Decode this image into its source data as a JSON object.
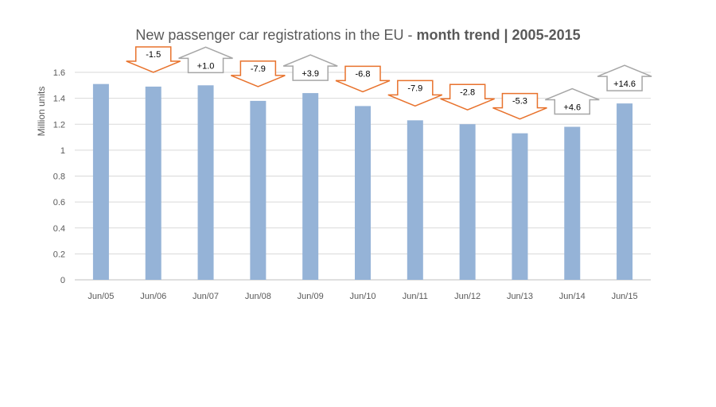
{
  "chart_data": {
    "type": "bar",
    "title": "New passenger car registrations in the EU - ",
    "title_bold": "month trend | 2005-2015",
    "xlabel": "",
    "ylabel": "Million units",
    "ylim": [
      0,
      1.6
    ],
    "yticks": [
      "0",
      "0.2",
      "0.4",
      "0.6",
      "0.8",
      "1",
      "1.2",
      "1.4",
      "1.6"
    ],
    "grid": true,
    "categories": [
      "Jun/05",
      "Jun/06",
      "Jun/07",
      "Jun/08",
      "Jun/09",
      "Jun/10",
      "Jun/11",
      "Jun/12",
      "Jun/13",
      "Jun/14",
      "Jun/15"
    ],
    "values": [
      1.51,
      1.49,
      1.5,
      1.38,
      1.44,
      1.34,
      1.23,
      1.2,
      1.13,
      1.18,
      1.36
    ],
    "changes": [
      "",
      "-1.5",
      "+1.0",
      "-7.9",
      "+3.9",
      "-6.8",
      "-7.9",
      "-2.8",
      "-5.3",
      "+4.6",
      "+14.6"
    ],
    "colors": {
      "bar": "#95b3d7",
      "arrow_down": "#e8722c",
      "arrow_up": "#a6a6a6",
      "grid": "#d9d9d9",
      "text": "#595959"
    }
  }
}
